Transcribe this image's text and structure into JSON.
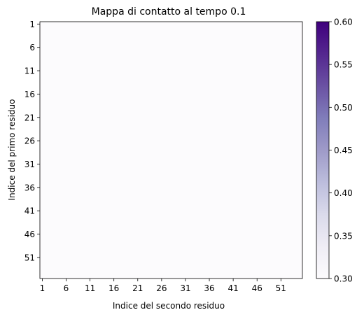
{
  "chart_data": {
    "type": "heatmap",
    "title": "Mappa di contatto al tempo 0.1",
    "xlabel": "Indice del secondo residuo",
    "ylabel": "Indice del primo residuo",
    "xticks": [
      "1",
      "6",
      "11",
      "16",
      "21",
      "26",
      "31",
      "36",
      "41",
      "46",
      "51"
    ],
    "yticks": [
      "1",
      "6",
      "11",
      "16",
      "21",
      "26",
      "31",
      "36",
      "41",
      "46",
      "51"
    ],
    "n_residues": 55,
    "fill_value": 0.3,
    "colorbar": {
      "colormap": "Purples",
      "range": [
        0.3,
        0.6
      ],
      "ticks": [
        "0.30",
        "0.35",
        "0.40",
        "0.45",
        "0.50",
        "0.55",
        "0.60"
      ],
      "low_color": "#fcfbfd",
      "high_color": "#3f007d"
    },
    "grid": false
  }
}
